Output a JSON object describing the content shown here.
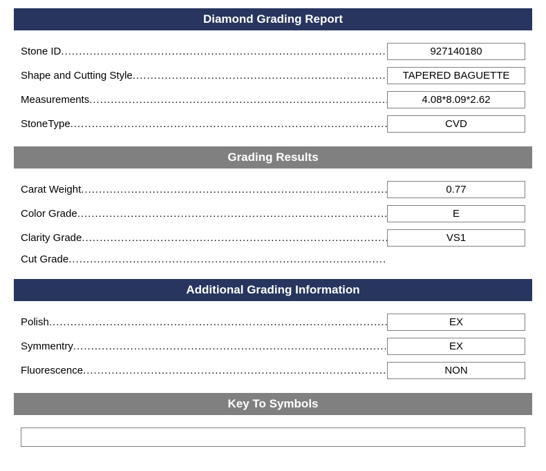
{
  "colors": {
    "navy": "#27355f",
    "gray": "#808080",
    "text": "#000000",
    "bg": "#ffffff"
  },
  "sections": {
    "report": {
      "title": "Diamond Grading Report",
      "header_bg": "#27355f",
      "rows": [
        {
          "label": "Stone ID",
          "value": "927140180"
        },
        {
          "label": "Shape and Cutting Style",
          "value": "TAPERED BAGUETTE"
        },
        {
          "label": "Measurements",
          "value": "4.08*8.09*2.62"
        },
        {
          "label": "StoneType",
          "value": "CVD"
        }
      ]
    },
    "grading": {
      "title": "Grading Results",
      "header_bg": "#808080",
      "rows": [
        {
          "label": "Carat Weight",
          "value": "0.77"
        },
        {
          "label": "Color Grade",
          "value": "E"
        },
        {
          "label": "Clarity Grade",
          "value": "VS1"
        },
        {
          "label": "Cut Grade",
          "value": ""
        }
      ]
    },
    "additional": {
      "title": "Additional Grading Information",
      "header_bg": "#27355f",
      "rows": [
        {
          "label": "Polish",
          "value": "EX"
        },
        {
          "label": "Symmentry",
          "value": "EX"
        },
        {
          "label": "Fluorescence",
          "value": "NON"
        }
      ]
    },
    "symbols": {
      "title": "Key To Symbols",
      "header_bg": "#808080"
    }
  }
}
